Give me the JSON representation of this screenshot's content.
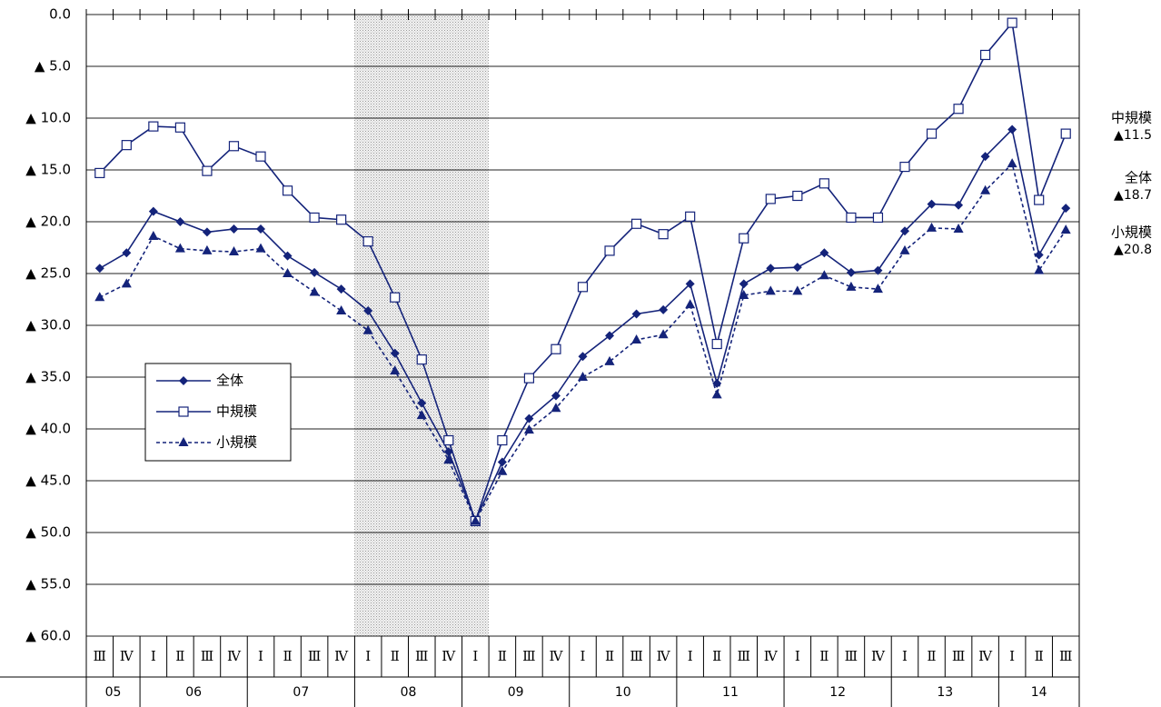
{
  "chart_data": {
    "type": "line",
    "categories": [
      "Ⅲ",
      "Ⅳ",
      "Ⅰ",
      "Ⅱ",
      "Ⅲ",
      "Ⅳ",
      "Ⅰ",
      "Ⅱ",
      "Ⅲ",
      "Ⅳ",
      "Ⅰ",
      "Ⅱ",
      "Ⅲ",
      "Ⅳ",
      "Ⅰ",
      "Ⅱ",
      "Ⅲ",
      "Ⅳ",
      "Ⅰ",
      "Ⅱ",
      "Ⅲ",
      "Ⅳ",
      "Ⅰ",
      "Ⅱ",
      "Ⅲ",
      "Ⅳ",
      "Ⅰ",
      "Ⅱ",
      "Ⅲ",
      "Ⅳ",
      "Ⅰ",
      "Ⅱ",
      "Ⅲ",
      "Ⅳ",
      "Ⅰ",
      "Ⅱ",
      "Ⅲ"
    ],
    "years": [
      "05",
      "06",
      "07",
      "08",
      "09",
      "10",
      "11",
      "12",
      "13",
      "14"
    ],
    "series": [
      {
        "name": "全体",
        "color": "#14237a",
        "marker": "diamond",
        "dashed": false,
        "values": [
          -24.5,
          -23.0,
          -19.0,
          -20.0,
          -21.0,
          -20.7,
          -20.7,
          -23.3,
          -24.9,
          -26.5,
          -28.6,
          -32.7,
          -37.5,
          -42.2,
          -48.8,
          -43.2,
          -39.0,
          -36.8,
          -33.0,
          -31.0,
          -28.9,
          -28.5,
          -26.0,
          -35.6,
          -26.0,
          -24.5,
          -24.4,
          -23.0,
          -24.9,
          -24.7,
          -20.9,
          -18.3,
          -18.4,
          -13.7,
          -11.1,
          -23.2,
          -18.7
        ]
      },
      {
        "name": "中規模",
        "color": "#14237a",
        "marker": "square",
        "dashed": false,
        "values": [
          -15.3,
          -12.6,
          -10.8,
          -10.9,
          -15.1,
          -12.7,
          -13.7,
          -17.0,
          -19.6,
          -19.8,
          -21.9,
          -27.3,
          -33.3,
          -41.1,
          -48.9,
          -41.1,
          -35.1,
          -32.3,
          -26.3,
          -22.8,
          -20.2,
          -21.2,
          -19.5,
          -31.8,
          -21.6,
          -17.8,
          -17.5,
          -16.3,
          -19.6,
          -19.6,
          -14.7,
          -11.5,
          -9.1,
          -3.9,
          -0.8,
          -17.9,
          -11.5
        ]
      },
      {
        "name": "小規模",
        "color": "#14237a",
        "marker": "triangle",
        "dashed": true,
        "values": [
          -27.3,
          -26.0,
          -21.4,
          -22.6,
          -22.8,
          -22.9,
          -22.6,
          -25.0,
          -26.8,
          -28.6,
          -30.5,
          -34.4,
          -38.7,
          -43.0,
          -48.9,
          -44.1,
          -40.1,
          -38.0,
          -35.0,
          -33.5,
          -31.4,
          -30.9,
          -28.0,
          -36.7,
          -27.1,
          -26.7,
          -26.7,
          -25.2,
          -26.3,
          -26.5,
          -22.8,
          -20.6,
          -20.7,
          -17.0,
          -14.4,
          -24.7,
          -20.8
        ]
      }
    ],
    "ylim": [
      -60,
      0
    ],
    "yticks": [
      {
        "value": 0,
        "label": "0.0"
      },
      {
        "value": -5,
        "label": "▲ 5.0"
      },
      {
        "value": -10,
        "label": "▲ 10.0"
      },
      {
        "value": -15,
        "label": "▲ 15.0"
      },
      {
        "value": -20,
        "label": "▲ 20.0"
      },
      {
        "value": -25,
        "label": "▲ 25.0"
      },
      {
        "value": -30,
        "label": "▲ 30.0"
      },
      {
        "value": -35,
        "label": "▲ 35.0"
      },
      {
        "value": -40,
        "label": "▲ 40.0"
      },
      {
        "value": -45,
        "label": "▲ 45.0"
      },
      {
        "value": -50,
        "label": "▲ 50.0"
      },
      {
        "value": -55,
        "label": "▲ 55.0"
      },
      {
        "value": -60,
        "label": "▲ 60.0"
      }
    ],
    "grid": true,
    "annotations": [
      {
        "name": "中規模",
        "value": "▲11.5"
      },
      {
        "name": "全体",
        "value": "▲18.7"
      },
      {
        "name": "小規模",
        "value": "▲20.8"
      }
    ]
  }
}
